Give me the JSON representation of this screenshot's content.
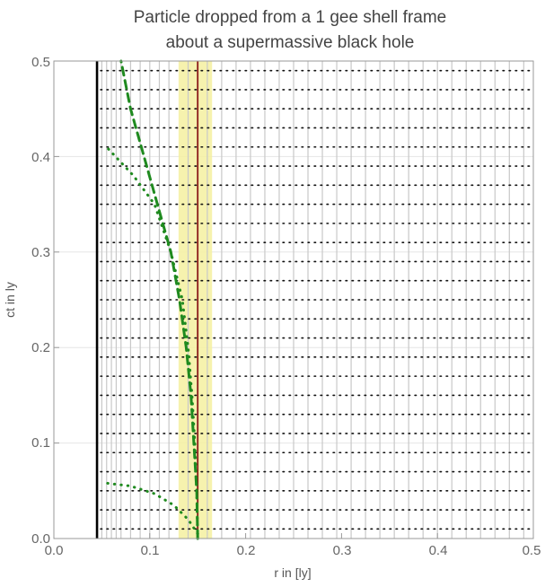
{
  "chart_data": {
    "type": "line",
    "title_lines": [
      "Particle dropped from a 1 gee shell frame",
      "about a supermassive black hole"
    ],
    "xlabel": "r in [ly]",
    "ylabel": "ct in ly",
    "xlim": [
      0,
      0.5
    ],
    "ylim": [
      0,
      0.5
    ],
    "x_ticks": [
      "0.0",
      "0.1",
      "0.2",
      "0.3",
      "0.4",
      "0.5"
    ],
    "y_ticks": [
      "0.0",
      "0.1",
      "0.2",
      "0.3",
      "0.4",
      "0.5"
    ],
    "grid": true,
    "horizon_r": 0.045,
    "release_r": 0.15,
    "band_r": [
      0.13,
      0.165
    ],
    "shell_radii": [
      0.05,
      0.055,
      0.06,
      0.065,
      0.07,
      0.08,
      0.09,
      0.1,
      0.11,
      0.12,
      0.14,
      0.16,
      0.175,
      0.19,
      0.205,
      0.22,
      0.235,
      0.25,
      0.265,
      0.28,
      0.295,
      0.31,
      0.325,
      0.34,
      0.355,
      0.37,
      0.385,
      0.4,
      0.415,
      0.43,
      0.445,
      0.46,
      0.475,
      0.49
    ],
    "dotted_time_levels": [
      0.01,
      0.03,
      0.05,
      0.07,
      0.09,
      0.11,
      0.13,
      0.15,
      0.17,
      0.19,
      0.21,
      0.23,
      0.25,
      0.27,
      0.29,
      0.31,
      0.33,
      0.35,
      0.37,
      0.39,
      0.41,
      0.43,
      0.45,
      0.47,
      0.49
    ],
    "colors": {
      "horizon": "#000000",
      "release": "#8b1a1a",
      "band": "#f5f0a0",
      "shell_lines": "#c8c8c8",
      "trajectory": "#1f8a1f",
      "dotted_levels": "#111111",
      "grid": "#e6e6e6",
      "frame": "#999999"
    },
    "series": [
      {
        "style": "dashed",
        "points": [
          [
            0.15,
            0.0
          ],
          [
            0.149,
            0.05
          ],
          [
            0.146,
            0.1
          ],
          [
            0.143,
            0.15
          ],
          [
            0.138,
            0.2
          ],
          [
            0.131,
            0.25
          ],
          [
            0.122,
            0.3
          ],
          [
            0.108,
            0.35
          ],
          [
            0.094,
            0.4
          ],
          [
            0.08,
            0.45
          ],
          [
            0.07,
            0.5
          ]
        ]
      },
      {
        "style": "dotted",
        "points": [
          [
            0.15,
            0.0
          ],
          [
            0.149,
            0.05
          ],
          [
            0.147,
            0.1
          ],
          [
            0.144,
            0.15
          ],
          [
            0.14,
            0.2
          ],
          [
            0.134,
            0.25
          ],
          [
            0.122,
            0.3
          ],
          [
            0.105,
            0.35
          ],
          [
            0.083,
            0.38
          ],
          [
            0.055,
            0.41
          ]
        ]
      },
      {
        "style": "dotted",
        "points": [
          [
            0.15,
            0.005
          ],
          [
            0.14,
            0.02
          ],
          [
            0.125,
            0.035
          ],
          [
            0.105,
            0.047
          ],
          [
            0.08,
            0.055
          ],
          [
            0.055,
            0.058
          ]
        ]
      }
    ]
  }
}
